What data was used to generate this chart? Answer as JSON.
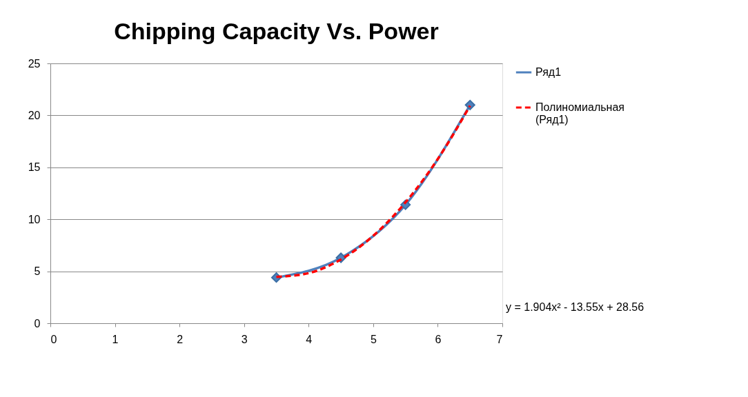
{
  "chart_data": {
    "type": "line",
    "title": "Chipping Capacity Vs. Power",
    "x": [
      3.5,
      4.5,
      5.5,
      6.5
    ],
    "series": [
      {
        "name": "Ряд1",
        "color": "#4f81bd",
        "values": [
          4.4,
          6.3,
          11.4,
          21
        ],
        "marker": "diamond",
        "line_style": "solid"
      },
      {
        "name": "Полиномиальная (Ряд1)",
        "type": "line",
        "color": "#ff0000",
        "line_style": "dashed",
        "marker": "none",
        "x": [
          3.5,
          4.0,
          4.5,
          5.0,
          5.5,
          6.0,
          6.5
        ],
        "values": [
          4.46,
          4.82,
          6.14,
          8.41,
          11.63,
          15.8,
          20.93
        ]
      }
    ],
    "xlim": [
      0,
      7
    ],
    "xticks": [
      0,
      1,
      2,
      3,
      4,
      5,
      6,
      7
    ],
    "ylim": [
      0,
      25
    ],
    "yticks": [
      0,
      5,
      10,
      15,
      20,
      25
    ],
    "grid": "y",
    "legend": "right",
    "annotations": [
      "y = 1.904x² - 13.55x + 28.56"
    ]
  }
}
